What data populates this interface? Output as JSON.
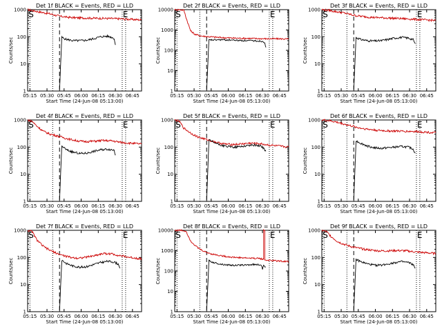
{
  "figure": {
    "panels": [
      {
        "title": "Det 1f BLACK = Events, RED = LLD",
        "ymax": 1000,
        "s_label": "S",
        "e_label": "E"
      },
      {
        "title": "Det 2f BLACK = Events, RED = LLD",
        "ymax": 10000,
        "s_label": "S",
        "e_label": "E"
      },
      {
        "title": "Det 3f BLACK = Events, RED = LLD",
        "ymax": 1000,
        "s_label": "S",
        "e_label": "E"
      },
      {
        "title": "Det 4f BLACK = Events, RED = LLD",
        "ymax": 1000,
        "s_label": "S",
        "e_label": "E"
      },
      {
        "title": "Det 5f BLACK = Events, RED = LLD",
        "ymax": 1000,
        "s_label": "S",
        "e_label": "E"
      },
      {
        "title": "Det 6f BLACK = Events, RED = LLD",
        "ymax": 1000,
        "s_label": "S",
        "e_label": "E"
      },
      {
        "title": "Det 7f BLACK = Events, RED = LLD",
        "ymax": 1000,
        "s_label": "S",
        "e_label": "E"
      },
      {
        "title": "Det 8f BLACK = Events, RED = LLD",
        "ymax": 10000,
        "s_label": "S",
        "e_label": "E"
      },
      {
        "title": "Det 9f BLACK = Events, RED = LLD",
        "ymax": 1000,
        "s_label": "S",
        "e_label": "E"
      }
    ]
  },
  "chart_data": {
    "type": "line",
    "log_y": true,
    "grid": false,
    "xlabel": "Start Time (24-Jun-08 05:13:00)",
    "ylabel": "Counts/sec",
    "xlim_min": [
      0,
      100
    ],
    "xticks": [
      {
        "v": 2,
        "label": "05:15"
      },
      {
        "v": 17,
        "label": "05:30"
      },
      {
        "v": 32,
        "label": "05:45"
      },
      {
        "v": 47,
        "label": "06:00"
      },
      {
        "v": 62,
        "label": "06:15"
      },
      {
        "v": 77,
        "label": "06:30"
      },
      {
        "v": 92,
        "label": "06:45"
      }
    ],
    "markers_min": {
      "s_dot": 2,
      "dot1": 22,
      "dash": 28,
      "dot2": 83,
      "e_dot": 86
    },
    "series_names": [
      "Events",
      "LLD"
    ],
    "series_colors": {
      "events": "#000000",
      "lld": "#cc0000"
    },
    "panels": [
      {
        "events": [
          [
            28,
            1
          ],
          [
            30,
            95
          ],
          [
            34,
            80
          ],
          [
            40,
            72
          ],
          [
            46,
            72
          ],
          [
            52,
            75
          ],
          [
            58,
            85
          ],
          [
            64,
            100
          ],
          [
            70,
            105
          ],
          [
            74,
            95
          ],
          [
            76,
            85
          ],
          [
            77,
            50
          ]
        ],
        "lld": [
          [
            0,
            1000
          ],
          [
            6,
            900
          ],
          [
            12,
            800
          ],
          [
            20,
            700
          ],
          [
            26,
            600
          ],
          [
            30,
            560
          ],
          [
            36,
            520
          ],
          [
            44,
            500
          ],
          [
            54,
            490
          ],
          [
            64,
            480
          ],
          [
            74,
            470
          ],
          [
            82,
            460
          ],
          [
            90,
            440
          ],
          [
            100,
            420
          ]
        ]
      },
      {
        "events": [
          [
            28,
            1
          ],
          [
            30,
            320
          ],
          [
            40,
            330
          ],
          [
            50,
            320
          ],
          [
            60,
            300
          ],
          [
            70,
            295
          ],
          [
            77,
            280
          ],
          [
            79,
            250
          ],
          [
            80,
            140
          ]
        ],
        "lld": [
          [
            0,
            10000
          ],
          [
            4,
            10000
          ],
          [
            8,
            9500
          ],
          [
            10,
            4000
          ],
          [
            14,
            900
          ],
          [
            18,
            600
          ],
          [
            24,
            500
          ],
          [
            32,
            460
          ],
          [
            42,
            420
          ],
          [
            52,
            400
          ],
          [
            62,
            390
          ],
          [
            72,
            380
          ],
          [
            82,
            370
          ],
          [
            92,
            370
          ],
          [
            100,
            360
          ]
        ]
      },
      {
        "events": [
          [
            28,
            1
          ],
          [
            30,
            95
          ],
          [
            34,
            80
          ],
          [
            40,
            72
          ],
          [
            46,
            70
          ],
          [
            52,
            72
          ],
          [
            58,
            80
          ],
          [
            64,
            90
          ],
          [
            70,
            95
          ],
          [
            76,
            90
          ],
          [
            80,
            80
          ],
          [
            82,
            55
          ]
        ],
        "lld": [
          [
            0,
            1000
          ],
          [
            6,
            950
          ],
          [
            12,
            850
          ],
          [
            20,
            750
          ],
          [
            26,
            650
          ],
          [
            30,
            600
          ],
          [
            36,
            560
          ],
          [
            44,
            520
          ],
          [
            54,
            500
          ],
          [
            64,
            480
          ],
          [
            74,
            460
          ],
          [
            82,
            440
          ],
          [
            90,
            420
          ],
          [
            100,
            400
          ]
        ]
      },
      {
        "events": [
          [
            28,
            1
          ],
          [
            30,
            110
          ],
          [
            34,
            80
          ],
          [
            40,
            65
          ],
          [
            46,
            58
          ],
          [
            52,
            60
          ],
          [
            58,
            70
          ],
          [
            64,
            80
          ],
          [
            70,
            85
          ],
          [
            76,
            78
          ],
          [
            77,
            50
          ]
        ],
        "lld": [
          [
            0,
            1000
          ],
          [
            4,
            900
          ],
          [
            8,
            600
          ],
          [
            14,
            380
          ],
          [
            20,
            300
          ],
          [
            26,
            260
          ],
          [
            32,
            220
          ],
          [
            38,
            190
          ],
          [
            44,
            170
          ],
          [
            50,
            160
          ],
          [
            58,
            165
          ],
          [
            66,
            175
          ],
          [
            74,
            170
          ],
          [
            82,
            150
          ],
          [
            90,
            140
          ],
          [
            100,
            130
          ]
        ]
      },
      {
        "events": [
          [
            28,
            1
          ],
          [
            30,
            180
          ],
          [
            34,
            150
          ],
          [
            40,
            120
          ],
          [
            46,
            105
          ],
          [
            52,
            100
          ],
          [
            58,
            105
          ],
          [
            64,
            115
          ],
          [
            70,
            120
          ],
          [
            76,
            110
          ],
          [
            80,
            70
          ]
        ],
        "lld": [
          [
            0,
            1000
          ],
          [
            4,
            900
          ],
          [
            8,
            500
          ],
          [
            14,
            330
          ],
          [
            20,
            240
          ],
          [
            26,
            200
          ],
          [
            32,
            170
          ],
          [
            38,
            145
          ],
          [
            44,
            130
          ],
          [
            50,
            125
          ],
          [
            58,
            130
          ],
          [
            66,
            140
          ],
          [
            74,
            135
          ],
          [
            82,
            120
          ],
          [
            90,
            110
          ],
          [
            100,
            100
          ]
        ]
      },
      {
        "events": [
          [
            28,
            1
          ],
          [
            30,
            170
          ],
          [
            34,
            140
          ],
          [
            40,
            110
          ],
          [
            46,
            95
          ],
          [
            52,
            90
          ],
          [
            58,
            95
          ],
          [
            64,
            100
          ],
          [
            70,
            105
          ],
          [
            76,
            100
          ],
          [
            80,
            85
          ],
          [
            82,
            60
          ]
        ],
        "lld": [
          [
            0,
            1000
          ],
          [
            6,
            950
          ],
          [
            12,
            850
          ],
          [
            20,
            700
          ],
          [
            26,
            600
          ],
          [
            32,
            520
          ],
          [
            40,
            460
          ],
          [
            48,
            420
          ],
          [
            56,
            400
          ],
          [
            64,
            390
          ],
          [
            72,
            385
          ],
          [
            80,
            380
          ],
          [
            90,
            360
          ],
          [
            100,
            340
          ]
        ]
      },
      {
        "events": [
          [
            28,
            1
          ],
          [
            30,
            80
          ],
          [
            34,
            60
          ],
          [
            40,
            48
          ],
          [
            46,
            44
          ],
          [
            52,
            46
          ],
          [
            58,
            55
          ],
          [
            64,
            65
          ],
          [
            70,
            72
          ],
          [
            76,
            68
          ],
          [
            80,
            55
          ],
          [
            81,
            40
          ]
        ],
        "lld": [
          [
            0,
            1000
          ],
          [
            4,
            900
          ],
          [
            8,
            450
          ],
          [
            14,
            250
          ],
          [
            20,
            180
          ],
          [
            26,
            140
          ],
          [
            32,
            115
          ],
          [
            38,
            100
          ],
          [
            44,
            95
          ],
          [
            50,
            100
          ],
          [
            58,
            115
          ],
          [
            66,
            140
          ],
          [
            74,
            135
          ],
          [
            82,
            115
          ],
          [
            90,
            100
          ],
          [
            100,
            90
          ]
        ]
      },
      {
        "events": [
          [
            28,
            1
          ],
          [
            30,
            320
          ],
          [
            34,
            260
          ],
          [
            40,
            220
          ],
          [
            46,
            200
          ],
          [
            52,
            190
          ],
          [
            58,
            195
          ],
          [
            64,
            200
          ],
          [
            70,
            210
          ],
          [
            76,
            200
          ],
          [
            77,
            120
          ],
          [
            78,
            180
          ],
          [
            80,
            160
          ]
        ],
        "lld": [
          [
            0,
            10000
          ],
          [
            6,
            10000
          ],
          [
            10,
            9000
          ],
          [
            14,
            3000
          ],
          [
            20,
            1400
          ],
          [
            26,
            900
          ],
          [
            32,
            700
          ],
          [
            38,
            600
          ],
          [
            44,
            530
          ],
          [
            50,
            480
          ],
          [
            58,
            450
          ],
          [
            66,
            430
          ],
          [
            74,
            420
          ],
          [
            78,
            380
          ],
          [
            78,
            10000
          ],
          [
            79,
            10000
          ],
          [
            79,
            350
          ],
          [
            84,
            330
          ],
          [
            92,
            310
          ],
          [
            100,
            290
          ]
        ]
      },
      {
        "events": [
          [
            28,
            1
          ],
          [
            30,
            85
          ],
          [
            34,
            70
          ],
          [
            40,
            58
          ],
          [
            46,
            52
          ],
          [
            52,
            52
          ],
          [
            58,
            58
          ],
          [
            64,
            65
          ],
          [
            70,
            70
          ],
          [
            76,
            65
          ],
          [
            80,
            55
          ],
          [
            82,
            40
          ]
        ],
        "lld": [
          [
            0,
            1000
          ],
          [
            4,
            900
          ],
          [
            8,
            600
          ],
          [
            14,
            380
          ],
          [
            20,
            300
          ],
          [
            26,
            250
          ],
          [
            32,
            220
          ],
          [
            38,
            200
          ],
          [
            44,
            185
          ],
          [
            50,
            175
          ],
          [
            58,
            175
          ],
          [
            66,
            180
          ],
          [
            74,
            175
          ],
          [
            82,
            160
          ],
          [
            90,
            150
          ],
          [
            100,
            140
          ]
        ]
      }
    ]
  }
}
